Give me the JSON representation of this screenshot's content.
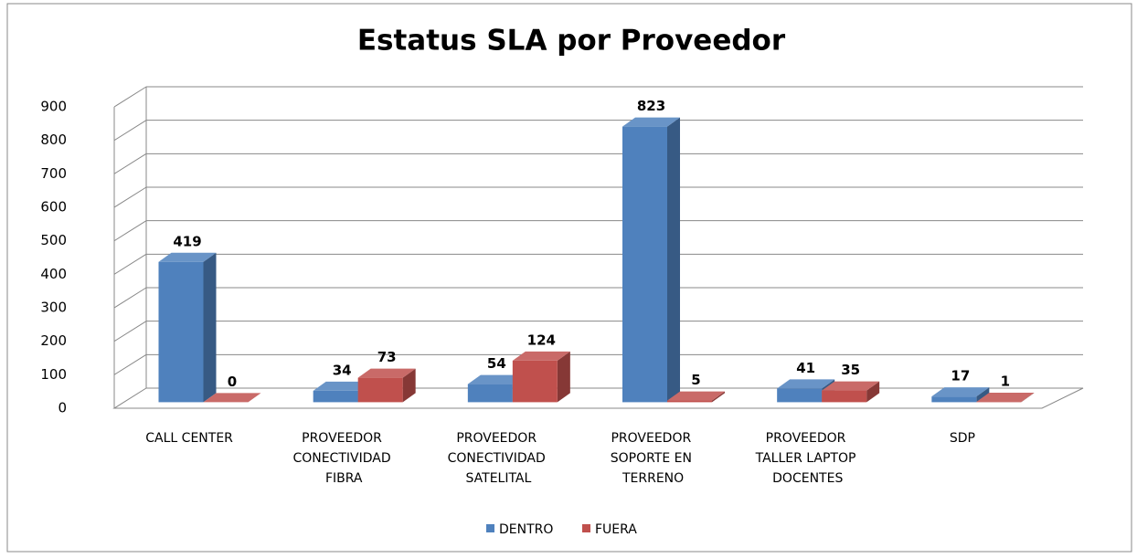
{
  "chart_data": {
    "type": "bar3d",
    "title": "Estatus SLA por Proveedor",
    "categories": [
      "CALL CENTER",
      "PROVEEDOR CONECTIVIDAD FIBRA",
      "PROVEEDOR CONECTIVIDAD SATELITAL",
      "PROVEEDOR SOPORTE EN TERRENO",
      "PROVEEDOR TALLER LAPTOP DOCENTES",
      "SDP"
    ],
    "series": [
      {
        "name": "DENTRO",
        "color": "#4f81bd",
        "values": [
          419,
          34,
          54,
          823,
          41,
          17
        ]
      },
      {
        "name": "FUERA",
        "color": "#c0504d",
        "values": [
          0,
          73,
          124,
          5,
          35,
          1
        ]
      }
    ],
    "ylim": [
      0,
      900
    ],
    "yticks": [
      0,
      100,
      200,
      300,
      400,
      500,
      600,
      700,
      800,
      900
    ],
    "grid": true,
    "legend": "bottom"
  }
}
